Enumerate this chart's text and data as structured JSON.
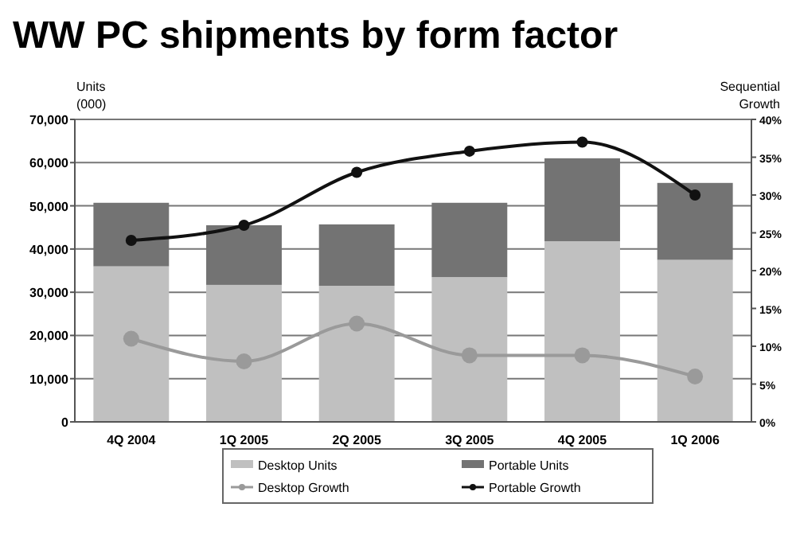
{
  "chart_data": {
    "type": "bar",
    "title": "WW PC shipments by form factor",
    "ylabel": "Units (000)",
    "y2label": "Sequential Growth",
    "categories": [
      "4Q 2004",
      "1Q 2005",
      "2Q 2005",
      "3Q 2005",
      "4Q 2005",
      "1Q 2006"
    ],
    "stacked": true,
    "series": [
      {
        "name": "Desktop Units",
        "color": "#c0c0c0",
        "values": [
          36000,
          31700,
          31500,
          33500,
          41800,
          37500
        ]
      },
      {
        "name": "Portable Units",
        "color": "#737373",
        "values": [
          14700,
          13800,
          14200,
          17200,
          19200,
          17800
        ]
      },
      {
        "name": "Desktop Growth",
        "type": "line",
        "axis": "y2",
        "color": "#9a9a9a",
        "marker": "circle",
        "values": [
          11,
          8,
          13,
          8.8,
          8.8,
          6
        ]
      },
      {
        "name": "Portable Growth",
        "type": "line",
        "axis": "y2",
        "color": "#111111",
        "marker": "circle",
        "values": [
          24,
          26,
          33,
          35.8,
          37,
          30
        ]
      }
    ],
    "ylim": [
      0,
      70000
    ],
    "yticks": [
      {
        "value": 0,
        "label": "0"
      },
      {
        "value": 10000,
        "label": "10,000"
      },
      {
        "value": 20000,
        "label": "20,000"
      },
      {
        "value": 30000,
        "label": "30,000"
      },
      {
        "value": 40000,
        "label": "40,000"
      },
      {
        "value": 50000,
        "label": "50,000"
      },
      {
        "value": 60000,
        "label": "60,000"
      },
      {
        "value": 70000,
        "label": "70,000"
      }
    ],
    "y2lim": [
      0,
      40
    ],
    "y2ticks": [
      {
        "value": 0,
        "label": "0%"
      },
      {
        "value": 5,
        "label": "5%"
      },
      {
        "value": 10,
        "label": "10%"
      },
      {
        "value": 15,
        "label": "15%"
      },
      {
        "value": 20,
        "label": "20%"
      },
      {
        "value": 25,
        "label": "25%"
      },
      {
        "value": 30,
        "label": "30%"
      },
      {
        "value": 35,
        "label": "35%"
      },
      {
        "value": 40,
        "label": "40%"
      }
    ],
    "grid": "y",
    "legend": "bottom"
  }
}
